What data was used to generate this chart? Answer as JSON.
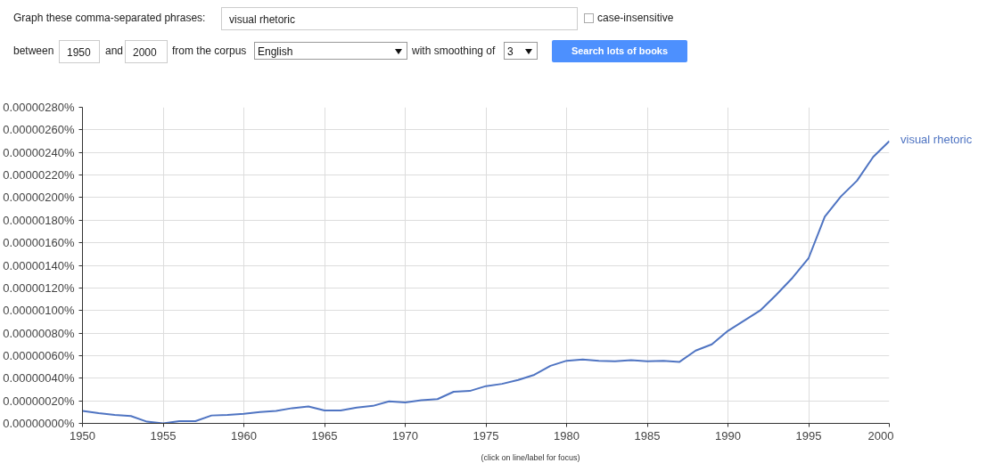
{
  "chart_data": {
    "type": "line",
    "annotations": [
      "Graph these comma-separated phrases:",
      "visual rhetoric",
      "case-insensitive",
      "between",
      "1950",
      "and",
      "2000",
      "from the corpus",
      "English",
      "with smoothing of",
      "3",
      "Search lots of books",
      "(click on line/label for focus)"
    ],
    "x": [
      1950,
      1951,
      1952,
      1953,
      1954,
      1955,
      1956,
      1957,
      1958,
      1959,
      1960,
      1961,
      1962,
      1963,
      1964,
      1965,
      1966,
      1967,
      1968,
      1969,
      1970,
      1971,
      1972,
      1973,
      1974,
      1975,
      1976,
      1977,
      1978,
      1979,
      1980,
      1981,
      1982,
      1983,
      1984,
      1985,
      1986,
      1987,
      1988,
      1989,
      1990,
      1991,
      1992,
      1993,
      1994,
      1995,
      1996,
      1997,
      1998,
      1999,
      2000
    ],
    "series": [
      {
        "name": "visual rhetoric",
        "color": "#4f74c2",
        "values": [
          1.1e-07,
          9e-08,
          7.5e-08,
          6.5e-08,
          1.5e-08,
          0.0,
          2e-08,
          2e-08,
          7e-08,
          7.5e-08,
          8.5e-08,
          1e-07,
          1.1e-07,
          1.35e-07,
          1.5e-07,
          1.15e-07,
          1.15e-07,
          1.4e-07,
          1.55e-07,
          1.95e-07,
          1.85e-07,
          2.05e-07,
          2.15e-07,
          2.8e-07,
          2.87e-07,
          3.3e-07,
          3.5e-07,
          3.85e-07,
          4.3e-07,
          5.1e-07,
          5.55e-07,
          5.65e-07,
          5.55e-07,
          5.5e-07,
          5.6e-07,
          5.5e-07,
          5.55e-07,
          5.45e-07,
          6.45e-07,
          7e-07,
          8.2e-07,
          9.1e-07,
          1e-06,
          1.14e-06,
          1.29e-06,
          1.465e-06,
          1.83e-06,
          2.01e-06,
          2.15e-06,
          2.36e-06,
          2.5e-06
        ]
      }
    ],
    "xlim": [
      1950,
      2000
    ],
    "xticks": [
      1950,
      1955,
      1960,
      1965,
      1970,
      1975,
      1980,
      1985,
      1990,
      1995,
      2000
    ],
    "ylim": [
      0,
      2.8e-06
    ],
    "yticks": [
      {
        "value": 0,
        "label": "0.00000000%"
      },
      {
        "value": 2e-07,
        "label": "0.00000020%"
      },
      {
        "value": 4e-07,
        "label": "0.00000040%"
      },
      {
        "value": 6e-07,
        "label": "0.00000060%"
      },
      {
        "value": 8e-07,
        "label": "0.00000080%"
      },
      {
        "value": 1e-06,
        "label": "0.00000100%"
      },
      {
        "value": 1.2e-06,
        "label": "0.00000120%"
      },
      {
        "value": 1.4e-06,
        "label": "0.00000140%"
      },
      {
        "value": 1.6e-06,
        "label": "0.00000160%"
      },
      {
        "value": 1.8e-06,
        "label": "0.00000180%"
      },
      {
        "value": 2e-06,
        "label": "0.00000200%"
      },
      {
        "value": 2.2e-06,
        "label": "0.00000220%"
      },
      {
        "value": 2.4e-06,
        "label": "0.00000240%"
      },
      {
        "value": 2.6e-06,
        "label": "0.00000260%"
      },
      {
        "value": 2.8e-06,
        "label": "0.00000280%"
      }
    ],
    "grid": true,
    "legend": false,
    "marker": "none",
    "line_style": "solid"
  }
}
